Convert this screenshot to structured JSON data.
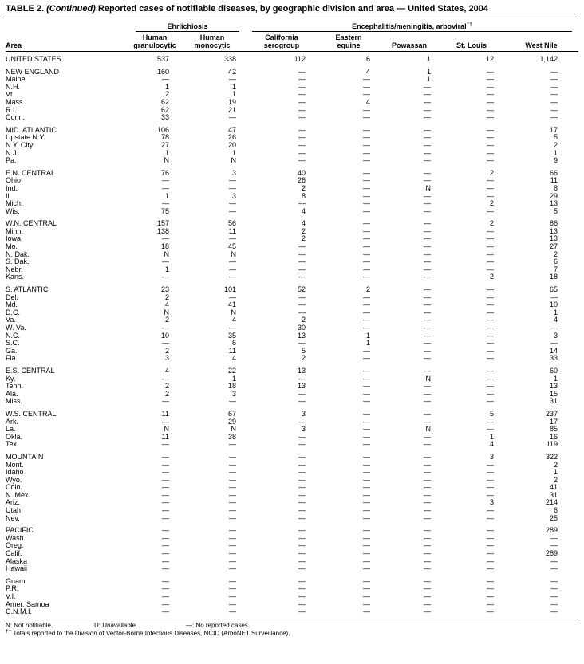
{
  "title": {
    "prefix": "TABLE 2.",
    "continued": "(Continued)",
    "text": "Reported cases of notifiable diseases, by geographic division and area — United States, 2004"
  },
  "table": {
    "area_header": "Area",
    "group1": "Ehrlichiosis",
    "group2": "Encephalitis/meningitis, arboviral",
    "group2_sup": "††",
    "columns": [
      "Human granulocytic",
      "Human monocytic",
      "California serogroup",
      "Eastern equine",
      "Powassan",
      "St. Louis",
      "West Nile"
    ],
    "sections": [
      {
        "rows": [
          {
            "area": "UNITED STATES",
            "values": [
              "537",
              "338",
              "112",
              "6",
              "1",
              "12",
              "1,142"
            ]
          }
        ]
      },
      {
        "rows": [
          {
            "area": "NEW ENGLAND",
            "values": [
              "160",
              "42",
              "—",
              "4",
              "1",
              "—",
              "—"
            ]
          },
          {
            "area": "Maine",
            "values": [
              "—",
              "—",
              "—",
              "—",
              "1",
              "—",
              "—"
            ]
          },
          {
            "area": "N.H.",
            "values": [
              "1",
              "1",
              "—",
              "—",
              "—",
              "—",
              "—"
            ]
          },
          {
            "area": "Vt.",
            "values": [
              "2",
              "1",
              "—",
              "—",
              "—",
              "—",
              "—"
            ]
          },
          {
            "area": "Mass.",
            "values": [
              "62",
              "19",
              "—",
              "4",
              "—",
              "—",
              "—"
            ]
          },
          {
            "area": "R.I.",
            "values": [
              "62",
              "21",
              "—",
              "—",
              "—",
              "—",
              "—"
            ]
          },
          {
            "area": "Conn.",
            "values": [
              "33",
              "—",
              "—",
              "—",
              "—",
              "—",
              "—"
            ]
          }
        ]
      },
      {
        "rows": [
          {
            "area": "MID. ATLANTIC",
            "values": [
              "106",
              "47",
              "—",
              "—",
              "—",
              "—",
              "17"
            ]
          },
          {
            "area": "Upstate N.Y.",
            "values": [
              "78",
              "26",
              "—",
              "—",
              "—",
              "—",
              "5"
            ]
          },
          {
            "area": "N.Y. City",
            "values": [
              "27",
              "20",
              "—",
              "—",
              "—",
              "—",
              "2"
            ]
          },
          {
            "area": "N.J.",
            "values": [
              "1",
              "1",
              "—",
              "—",
              "—",
              "—",
              "1"
            ]
          },
          {
            "area": "Pa.",
            "values": [
              "N",
              "N",
              "—",
              "—",
              "—",
              "—",
              "9"
            ]
          }
        ]
      },
      {
        "rows": [
          {
            "area": "E.N. CENTRAL",
            "values": [
              "76",
              "3",
              "40",
              "—",
              "—",
              "2",
              "66"
            ]
          },
          {
            "area": "Ohio",
            "values": [
              "—",
              "—",
              "26",
              "—",
              "—",
              "—",
              "11"
            ]
          },
          {
            "area": "Ind.",
            "values": [
              "—",
              "—",
              "2",
              "—",
              "N",
              "—",
              "8"
            ]
          },
          {
            "area": "Ill.",
            "values": [
              "1",
              "3",
              "8",
              "—",
              "—",
              "—",
              "29"
            ]
          },
          {
            "area": "Mich.",
            "values": [
              "—",
              "—",
              "—",
              "—",
              "—",
              "2",
              "13"
            ]
          },
          {
            "area": "Wis.",
            "values": [
              "75",
              "—",
              "4",
              "—",
              "—",
              "—",
              "5"
            ]
          }
        ]
      },
      {
        "rows": [
          {
            "area": "W.N. CENTRAL",
            "values": [
              "157",
              "56",
              "4",
              "—",
              "—",
              "2",
              "86"
            ]
          },
          {
            "area": "Minn.",
            "values": [
              "138",
              "11",
              "2",
              "—",
              "—",
              "—",
              "13"
            ]
          },
          {
            "area": "Iowa",
            "values": [
              "—",
              "—",
              "2",
              "—",
              "—",
              "—",
              "13"
            ]
          },
          {
            "area": "Mo.",
            "values": [
              "18",
              "45",
              "—",
              "—",
              "—",
              "—",
              "27"
            ]
          },
          {
            "area": "N. Dak.",
            "values": [
              "N",
              "N",
              "—",
              "—",
              "—",
              "—",
              "2"
            ]
          },
          {
            "area": "S. Dak.",
            "values": [
              "—",
              "—",
              "—",
              "—",
              "—",
              "—",
              "6"
            ]
          },
          {
            "area": "Nebr.",
            "values": [
              "1",
              "—",
              "—",
              "—",
              "—",
              "—",
              "7"
            ]
          },
          {
            "area": "Kans.",
            "values": [
              "—",
              "—",
              "—",
              "—",
              "—",
              "2",
              "18"
            ]
          }
        ]
      },
      {
        "rows": [
          {
            "area": "S. ATLANTIC",
            "values": [
              "23",
              "101",
              "52",
              "2",
              "—",
              "—",
              "65"
            ]
          },
          {
            "area": "Del.",
            "values": [
              "2",
              "—",
              "—",
              "—",
              "—",
              "—",
              "—"
            ]
          },
          {
            "area": "Md.",
            "values": [
              "4",
              "41",
              "—",
              "—",
              "—",
              "—",
              "10"
            ]
          },
          {
            "area": "D.C.",
            "values": [
              "N",
              "N",
              "—",
              "—",
              "—",
              "—",
              "1"
            ]
          },
          {
            "area": "Va.",
            "values": [
              "2",
              "4",
              "2",
              "—",
              "—",
              "—",
              "4"
            ]
          },
          {
            "area": "W. Va.",
            "values": [
              "—",
              "—",
              "30",
              "—",
              "—",
              "—",
              "—"
            ]
          },
          {
            "area": "N.C.",
            "values": [
              "10",
              "35",
              "13",
              "1",
              "—",
              "—",
              "3"
            ]
          },
          {
            "area": "S.C.",
            "values": [
              "—",
              "6",
              "—",
              "1",
              "—",
              "—",
              "—"
            ]
          },
          {
            "area": "Ga.",
            "values": [
              "2",
              "11",
              "5",
              "—",
              "—",
              "—",
              "14"
            ]
          },
          {
            "area": "Fla.",
            "values": [
              "3",
              "4",
              "2",
              "—",
              "—",
              "—",
              "33"
            ]
          }
        ]
      },
      {
        "rows": [
          {
            "area": "E.S. CENTRAL",
            "values": [
              "4",
              "22",
              "13",
              "—",
              "—",
              "—",
              "60"
            ]
          },
          {
            "area": "Ky.",
            "values": [
              "—",
              "1",
              "—",
              "—",
              "N",
              "—",
              "1"
            ]
          },
          {
            "area": "Tenn.",
            "values": [
              "2",
              "18",
              "13",
              "—",
              "—",
              "—",
              "13"
            ]
          },
          {
            "area": "Ala.",
            "values": [
              "2",
              "3",
              "—",
              "—",
              "—",
              "—",
              "15"
            ]
          },
          {
            "area": "Miss.",
            "values": [
              "—",
              "—",
              "—",
              "—",
              "—",
              "—",
              "31"
            ]
          }
        ]
      },
      {
        "rows": [
          {
            "area": "W.S. CENTRAL",
            "values": [
              "11",
              "67",
              "3",
              "—",
              "—",
              "5",
              "237"
            ]
          },
          {
            "area": "Ark.",
            "values": [
              "—",
              "29",
              "—",
              "—",
              "—",
              "—",
              "17"
            ]
          },
          {
            "area": "La.",
            "values": [
              "N",
              "N",
              "3",
              "—",
              "N",
              "—",
              "85"
            ]
          },
          {
            "area": "Okla.",
            "values": [
              "11",
              "38",
              "—",
              "—",
              "—",
              "1",
              "16"
            ]
          },
          {
            "area": "Tex.",
            "values": [
              "—",
              "—",
              "—",
              "—",
              "—",
              "4",
              "119"
            ]
          }
        ]
      },
      {
        "rows": [
          {
            "area": "MOUNTAIN",
            "values": [
              "—",
              "—",
              "—",
              "—",
              "—",
              "3",
              "322"
            ]
          },
          {
            "area": "Mont.",
            "values": [
              "—",
              "—",
              "—",
              "—",
              "—",
              "—",
              "2"
            ]
          },
          {
            "area": "Idaho",
            "values": [
              "—",
              "—",
              "—",
              "—",
              "—",
              "—",
              "1"
            ]
          },
          {
            "area": "Wyo.",
            "values": [
              "—",
              "—",
              "—",
              "—",
              "—",
              "—",
              "2"
            ]
          },
          {
            "area": "Colo.",
            "values": [
              "—",
              "—",
              "—",
              "—",
              "—",
              "—",
              "41"
            ]
          },
          {
            "area": "N. Mex.",
            "values": [
              "—",
              "—",
              "—",
              "—",
              "—",
              "—",
              "31"
            ]
          },
          {
            "area": "Ariz.",
            "values": [
              "—",
              "—",
              "—",
              "—",
              "—",
              "3",
              "214"
            ]
          },
          {
            "area": "Utah",
            "values": [
              "—",
              "—",
              "—",
              "—",
              "—",
              "—",
              "6"
            ]
          },
          {
            "area": "Nev.",
            "values": [
              "—",
              "—",
              "—",
              "—",
              "—",
              "—",
              "25"
            ]
          }
        ]
      },
      {
        "rows": [
          {
            "area": "PACIFIC",
            "values": [
              "—",
              "—",
              "—",
              "—",
              "—",
              "—",
              "289"
            ]
          },
          {
            "area": "Wash.",
            "values": [
              "—",
              "—",
              "—",
              "—",
              "—",
              "—",
              "—"
            ]
          },
          {
            "area": "Oreg.",
            "values": [
              "—",
              "—",
              "—",
              "—",
              "—",
              "—",
              "—"
            ]
          },
          {
            "area": "Calif.",
            "values": [
              "—",
              "—",
              "—",
              "—",
              "—",
              "—",
              "289"
            ]
          },
          {
            "area": "Alaska",
            "values": [
              "—",
              "—",
              "—",
              "—",
              "—",
              "—",
              "—"
            ]
          },
          {
            "area": "Hawaii",
            "values": [
              "—",
              "—",
              "—",
              "—",
              "—",
              "—",
              "—"
            ]
          }
        ]
      },
      {
        "rows": [
          {
            "area": "Guam",
            "values": [
              "—",
              "—",
              "—",
              "—",
              "—",
              "—",
              "—"
            ]
          },
          {
            "area": "P.R.",
            "values": [
              "—",
              "—",
              "—",
              "—",
              "—",
              "—",
              "—"
            ]
          },
          {
            "area": "V.I.",
            "values": [
              "—",
              "—",
              "—",
              "—",
              "—",
              "—",
              "—"
            ]
          },
          {
            "area": "Amer. Samoa",
            "values": [
              "—",
              "—",
              "—",
              "—",
              "—",
              "—",
              "—"
            ]
          },
          {
            "area": "C.N.M.I.",
            "values": [
              "—",
              "—",
              "—",
              "—",
              "—",
              "—",
              "—"
            ]
          }
        ]
      }
    ]
  },
  "footnotes": {
    "key1": "N: Not notifiable.",
    "key2": "U: Unavailable.",
    "key3": "—: No reported cases.",
    "dagger": "††",
    "note": "Totals reported to the Division of Vector-Borne Infectious Diseases, NCID (ArboNET Surveillance)."
  }
}
